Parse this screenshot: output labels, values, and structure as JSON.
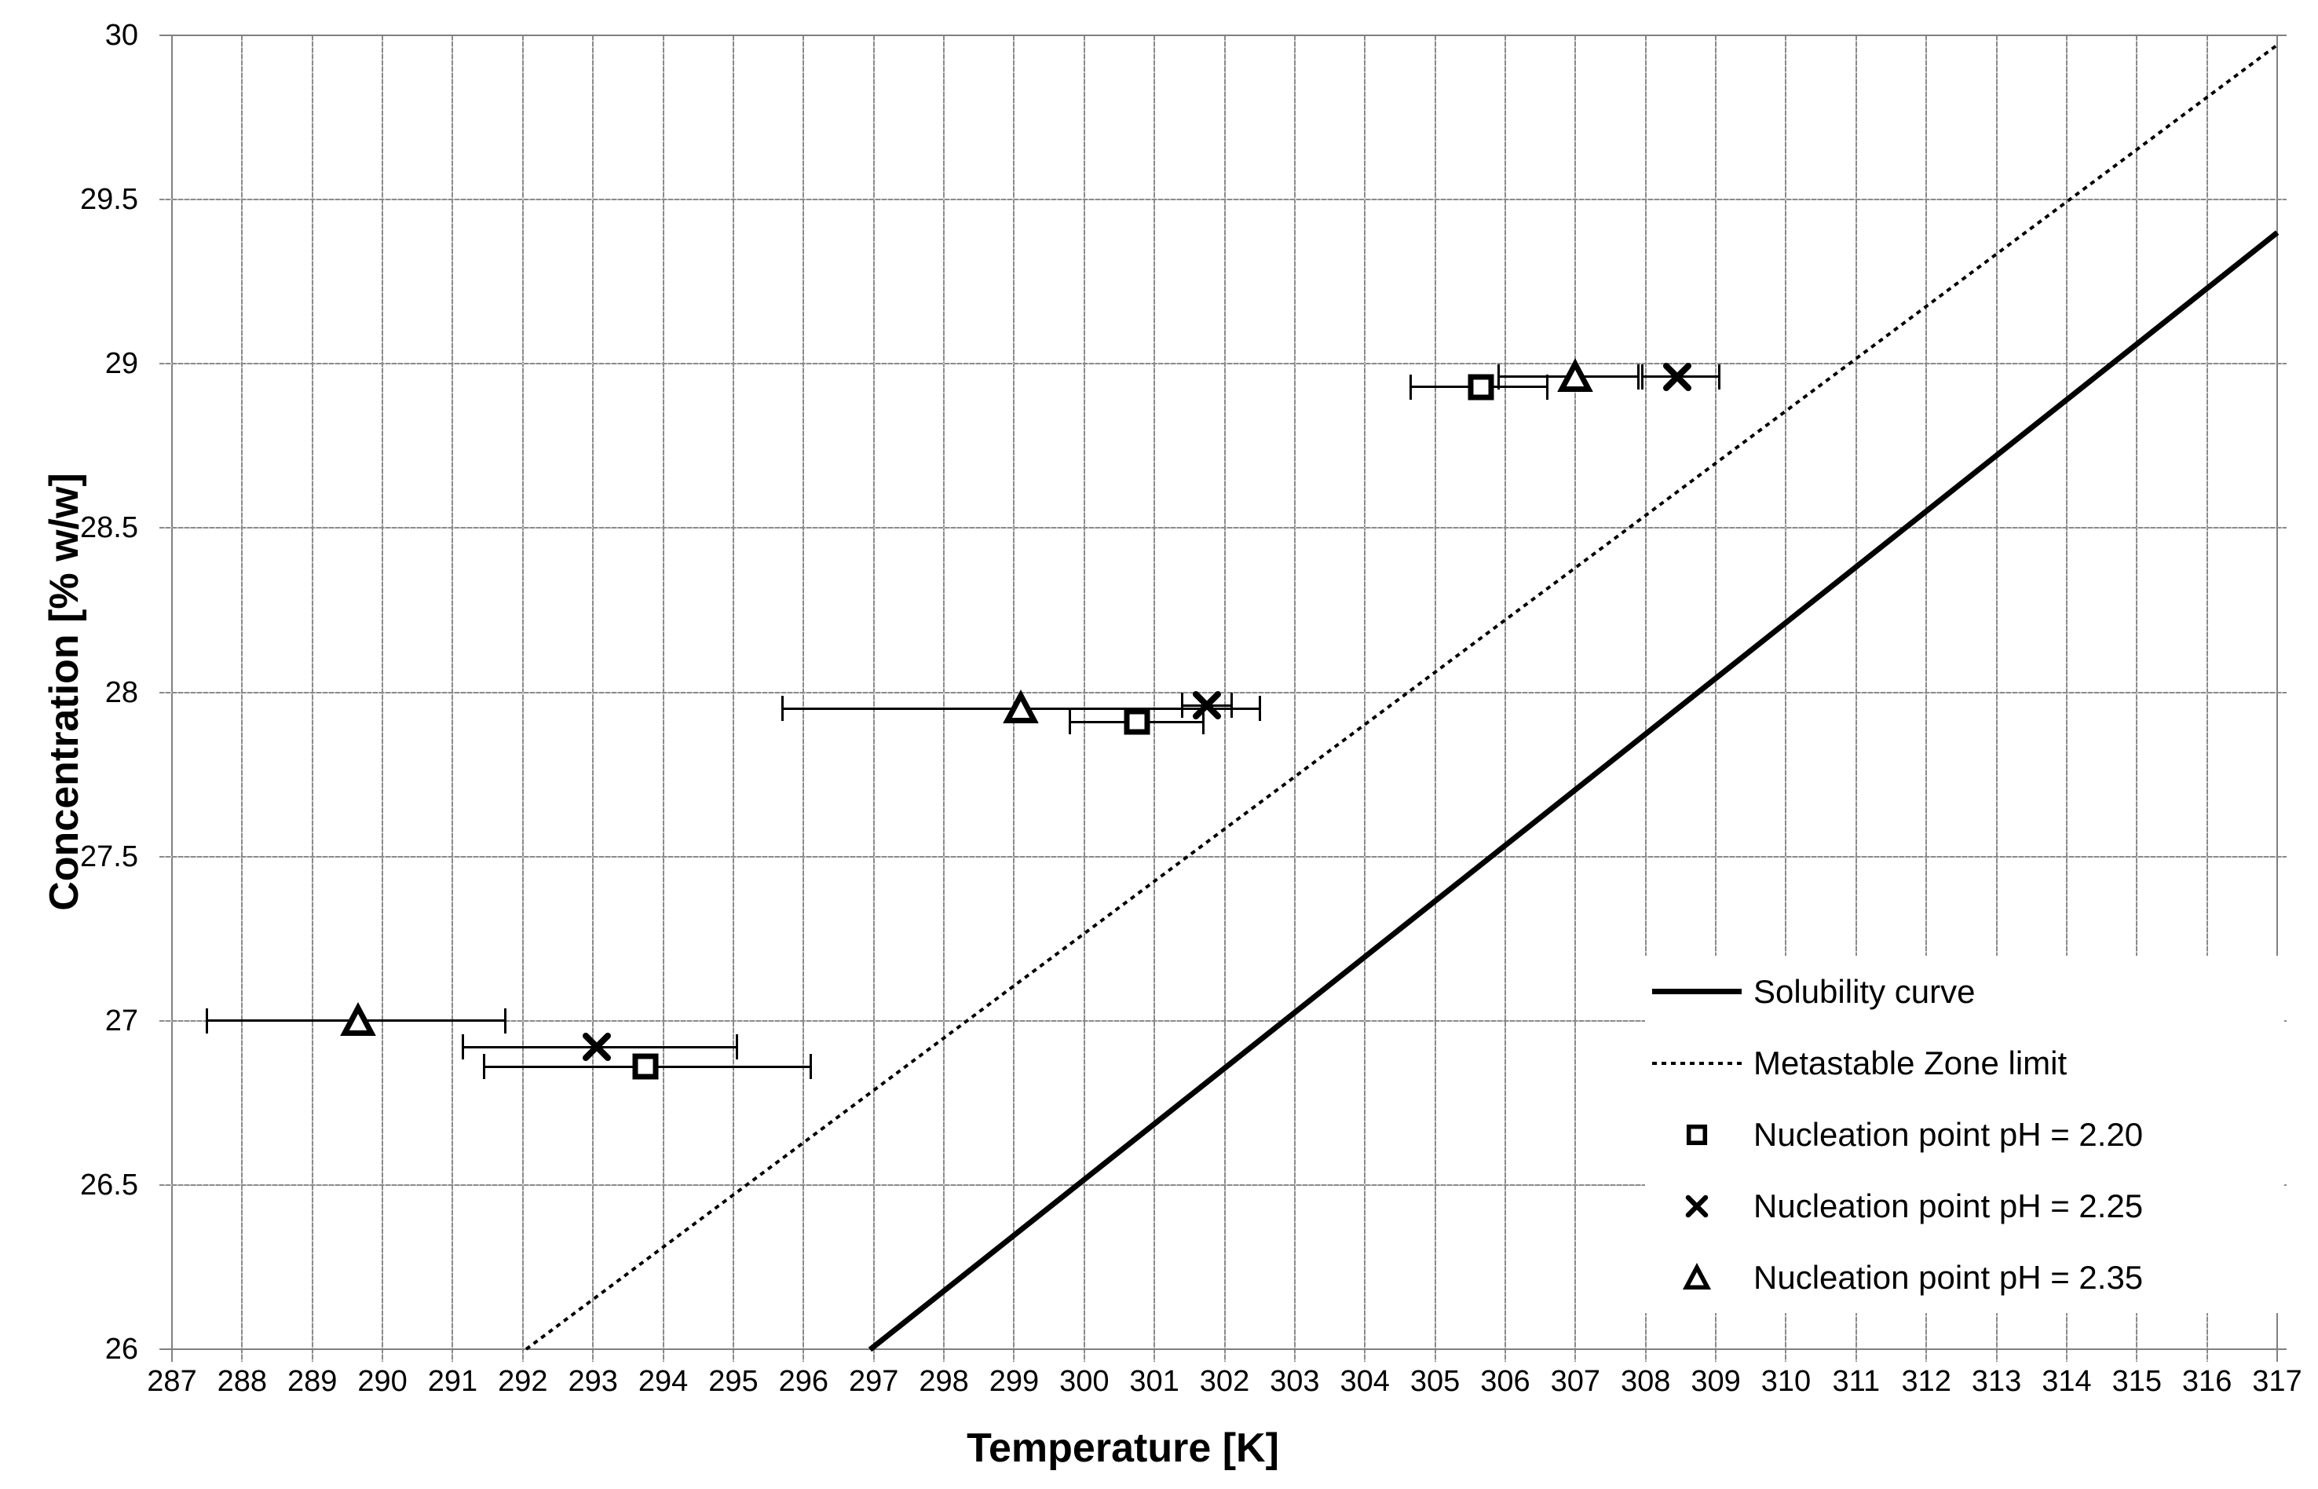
{
  "chart_data": {
    "type": "scatter",
    "title": "",
    "xlabel": "Temperature [K]",
    "ylabel": "Concentration [% w/w]",
    "xlim": [
      287,
      317
    ],
    "ylim": [
      26,
      30
    ],
    "x_ticks": [
      287,
      288,
      289,
      290,
      291,
      292,
      293,
      294,
      295,
      296,
      297,
      298,
      299,
      300,
      301,
      302,
      303,
      304,
      305,
      306,
      307,
      308,
      309,
      310,
      311,
      312,
      313,
      314,
      315,
      316,
      317
    ],
    "y_ticks": [
      30,
      29.5,
      29,
      28.5,
      28,
      27.5,
      27,
      26.5,
      26
    ],
    "grid": {
      "show": true,
      "color": "#8a8a8a",
      "style": "fine-dashed"
    },
    "axis_line_color": "#808080",
    "text_color": "#000000",
    "lines": [
      {
        "name": "Solubility curve",
        "style": "solid",
        "color": "#000000",
        "points": [
          [
            296.95,
            26.0
          ],
          [
            317.0,
            29.4
          ]
        ]
      },
      {
        "name": "Metastable Zone limit",
        "style": "dotted",
        "color": "#000000",
        "points": [
          [
            292.05,
            26.0
          ],
          [
            317.0,
            29.97
          ]
        ]
      }
    ],
    "series": [
      {
        "name": "Nucleation point pH = 2.20",
        "marker": "square",
        "points": [
          {
            "T": 293.75,
            "C": 26.86,
            "T_lo": 291.45,
            "T_hi": 296.1
          },
          {
            "T": 300.75,
            "C": 27.91,
            "T_lo": 299.8,
            "T_hi": 301.7
          },
          {
            "T": 305.65,
            "C": 28.93,
            "T_lo": 304.65,
            "T_hi": 306.6
          }
        ]
      },
      {
        "name": "Nucleation point pH = 2.25",
        "marker": "x",
        "points": [
          {
            "T": 293.05,
            "C": 26.92,
            "T_lo": 291.15,
            "T_hi": 295.05
          },
          {
            "T": 301.75,
            "C": 27.96,
            "T_lo": 301.4,
            "T_hi": 302.1
          },
          {
            "T": 308.45,
            "C": 28.96,
            "T_lo": 307.95,
            "T_hi": 309.05
          }
        ]
      },
      {
        "name": "Nucleation point pH = 2.35",
        "marker": "triangle",
        "points": [
          {
            "T": 289.65,
            "C": 27.0,
            "T_lo": 287.5,
            "T_hi": 291.75
          },
          {
            "T": 299.1,
            "C": 27.95,
            "T_lo": 295.7,
            "T_hi": 302.5
          },
          {
            "T": 307.0,
            "C": 28.96,
            "T_lo": 305.9,
            "T_hi": 307.9
          }
        ]
      }
    ],
    "legend": {
      "position": "inside-bottom-right",
      "entries": [
        {
          "label": "Solubility curve",
          "sample": "solid-line"
        },
        {
          "label": "Metastable Zone limit",
          "sample": "dotted-line"
        },
        {
          "label": "Nucleation point pH = 2.20",
          "sample": "square"
        },
        {
          "label": "Nucleation point pH = 2.25",
          "sample": "x"
        },
        {
          "label": "Nucleation point pH = 2.35",
          "sample": "triangle"
        }
      ]
    }
  }
}
